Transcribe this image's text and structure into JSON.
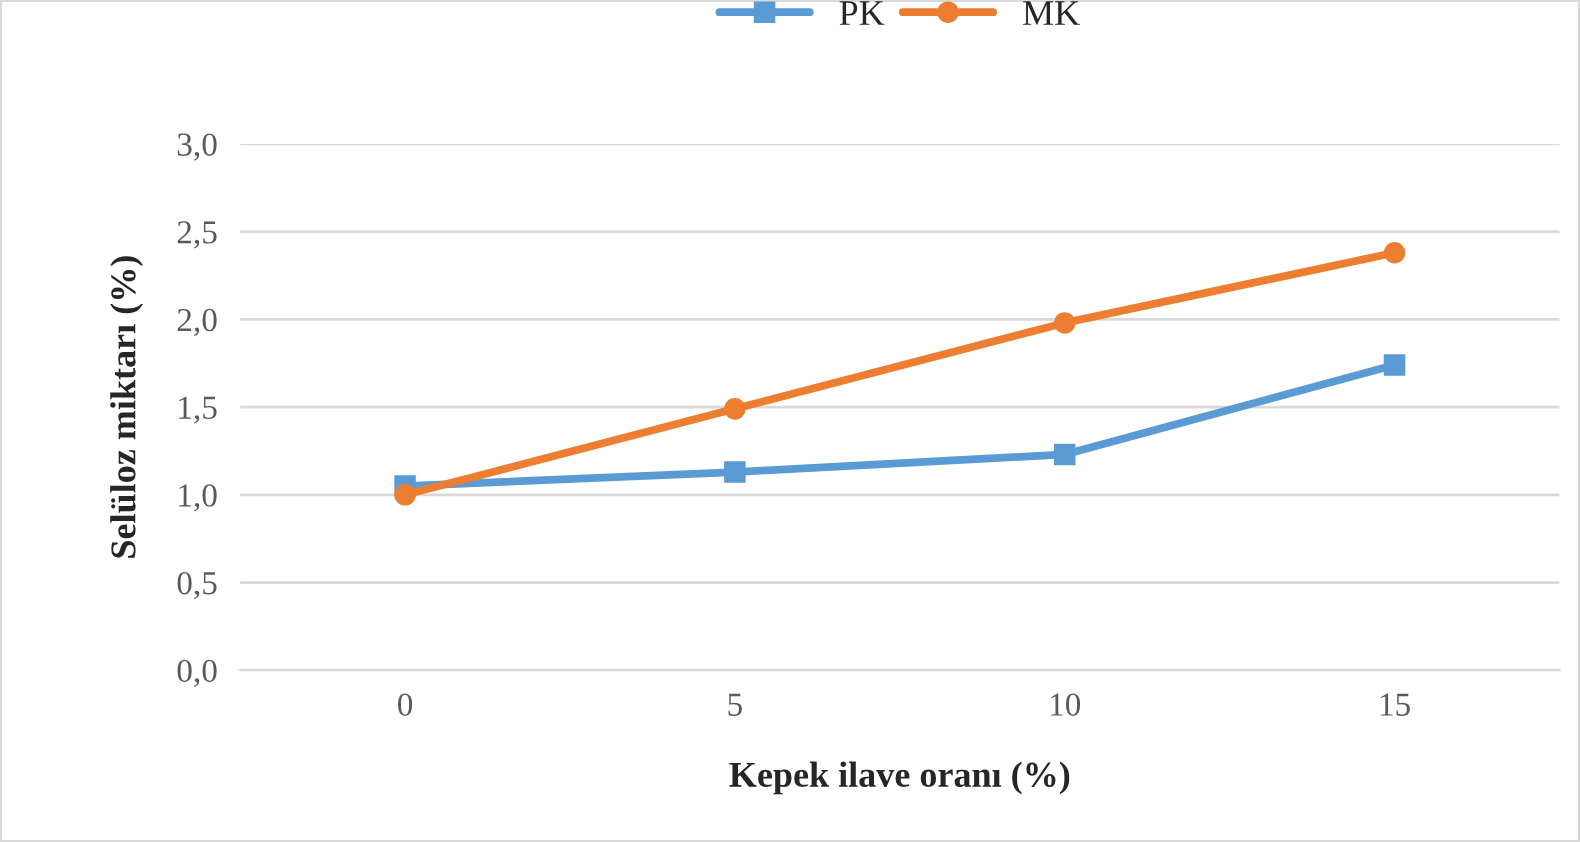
{
  "chart_data": {
    "type": "line",
    "xlabel": "Kepek ilave oranı (%)",
    "ylabel": "Selüloz miktarı (%)",
    "categories": [
      "0",
      "5",
      "10",
      "15"
    ],
    "series": [
      {
        "name": "PK",
        "color": "#5b9bd5",
        "marker": "square",
        "values": [
          1.05,
          1.13,
          1.23,
          1.74
        ]
      },
      {
        "name": "MK",
        "color": "#ed7d31",
        "marker": "circle",
        "values": [
          1.0,
          1.49,
          1.98,
          2.38
        ]
      }
    ],
    "ylim": [
      0,
      3
    ],
    "yticks": [
      {
        "value": 0,
        "label": "0,0"
      },
      {
        "value": 0.5,
        "label": "0,5"
      },
      {
        "value": 1,
        "label": "1,0"
      },
      {
        "value": 1.5,
        "label": "1,5"
      },
      {
        "value": 2,
        "label": "2,0"
      },
      {
        "value": 2.5,
        "label": "2,5"
      },
      {
        "value": 3,
        "label": "3,0"
      }
    ],
    "grid": "y",
    "legend": "top",
    "line_style": "solid"
  }
}
